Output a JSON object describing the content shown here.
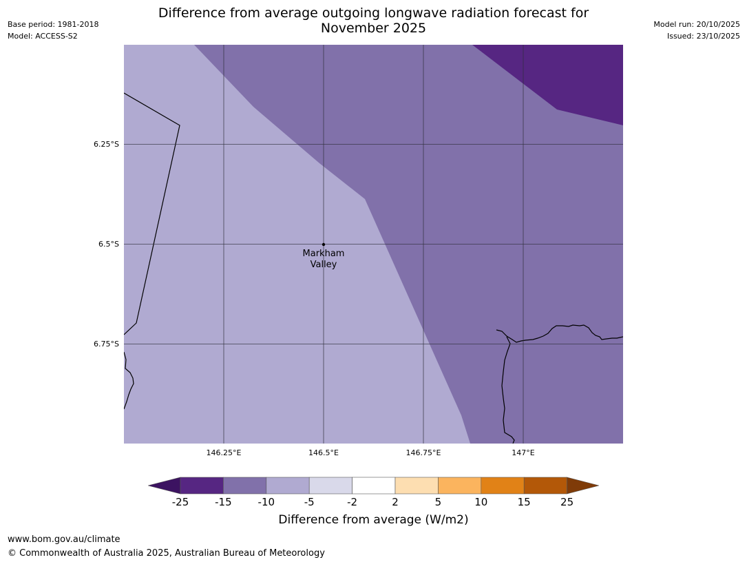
{
  "title": "Difference from average outgoing longwave radiation forecast for\nNovember 2025",
  "meta_left": {
    "base_period": "Base period: 1981-2018",
    "model": "Model: ACCESS-S2"
  },
  "meta_right": {
    "model_run": "Model run: 20/10/2025",
    "issued": "Issued: 23/10/2025"
  },
  "map": {
    "latitude_labels": [
      "6.25°S",
      "6.5°S",
      "6.75°S"
    ],
    "longitude_labels": [
      "146.25°E",
      "146.5°E",
      "146.75°E",
      "147°E"
    ],
    "location": {
      "name_line1": "Markham",
      "name_line2": "Valley",
      "lat": -6.5,
      "lon": 146.5
    },
    "extent": {
      "lon_min": 146.0,
      "lon_max": 147.25,
      "lat_max": -6.0,
      "lat_min": -7.0
    },
    "categories_present": [
      "-10 to -5",
      "-15 to -10",
      "-25 to -15"
    ]
  },
  "colorbar": {
    "ticks": [
      "-25",
      "-15",
      "-10",
      "-5",
      "-2",
      "2",
      "5",
      "10",
      "15",
      "25"
    ],
    "colors": [
      "#3c1361",
      "#562682",
      "#8171aa",
      "#b0aad1",
      "#d9d9ea",
      "#ffffff",
      "#fddeb1",
      "#fbb45e",
      "#e18217",
      "#b35808",
      "#7f3b08"
    ],
    "label": "Difference from average (W/m2)"
  },
  "footer": {
    "url": "www.bom.gov.au/climate",
    "copyright": "© Commonwealth of Australia 2025, Australian Bureau of Meteorology"
  }
}
